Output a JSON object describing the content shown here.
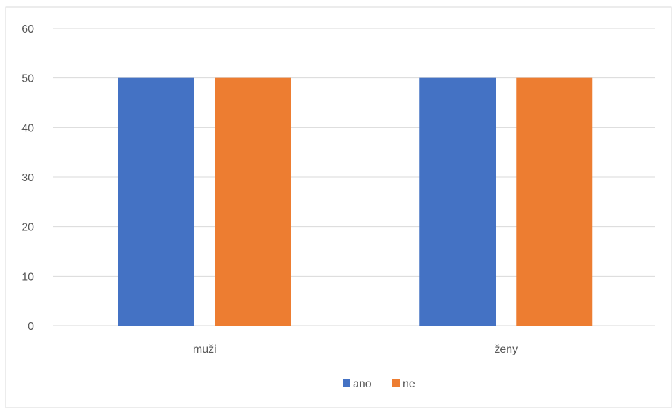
{
  "chart_data": {
    "type": "bar",
    "title": "",
    "xlabel": "",
    "ylabel": "",
    "categories": [
      "muži",
      "ženy"
    ],
    "series": [
      {
        "name": "ano",
        "values": [
          50,
          50
        ],
        "color": "#4472C4"
      },
      {
        "name": "ne",
        "values": [
          50,
          50
        ],
        "color": "#ED7D31"
      }
    ],
    "ylim": [
      0,
      60
    ],
    "yticks": [
      "0",
      "10",
      "20",
      "30",
      "40",
      "50",
      "60"
    ],
    "grid": true,
    "legend": "bottom",
    "gridline_color": "#D9D9D9",
    "frame_color": "#D9D9D9"
  }
}
